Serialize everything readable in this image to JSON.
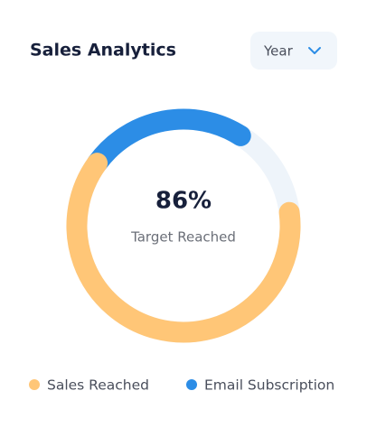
{
  "chart_data": {
    "type": "donut",
    "title": "Sales Analytics",
    "filter": "Year",
    "center_text": "86%",
    "center_subtitle": "Target Reached",
    "categories": [
      "Sales Reached",
      "Email Subscription"
    ],
    "values": [
      62,
      24
    ],
    "colors": [
      "#ffc677",
      "#2c8de6"
    ],
    "track_color": "#eef4fa",
    "ylim": [
      0,
      100
    ]
  }
}
